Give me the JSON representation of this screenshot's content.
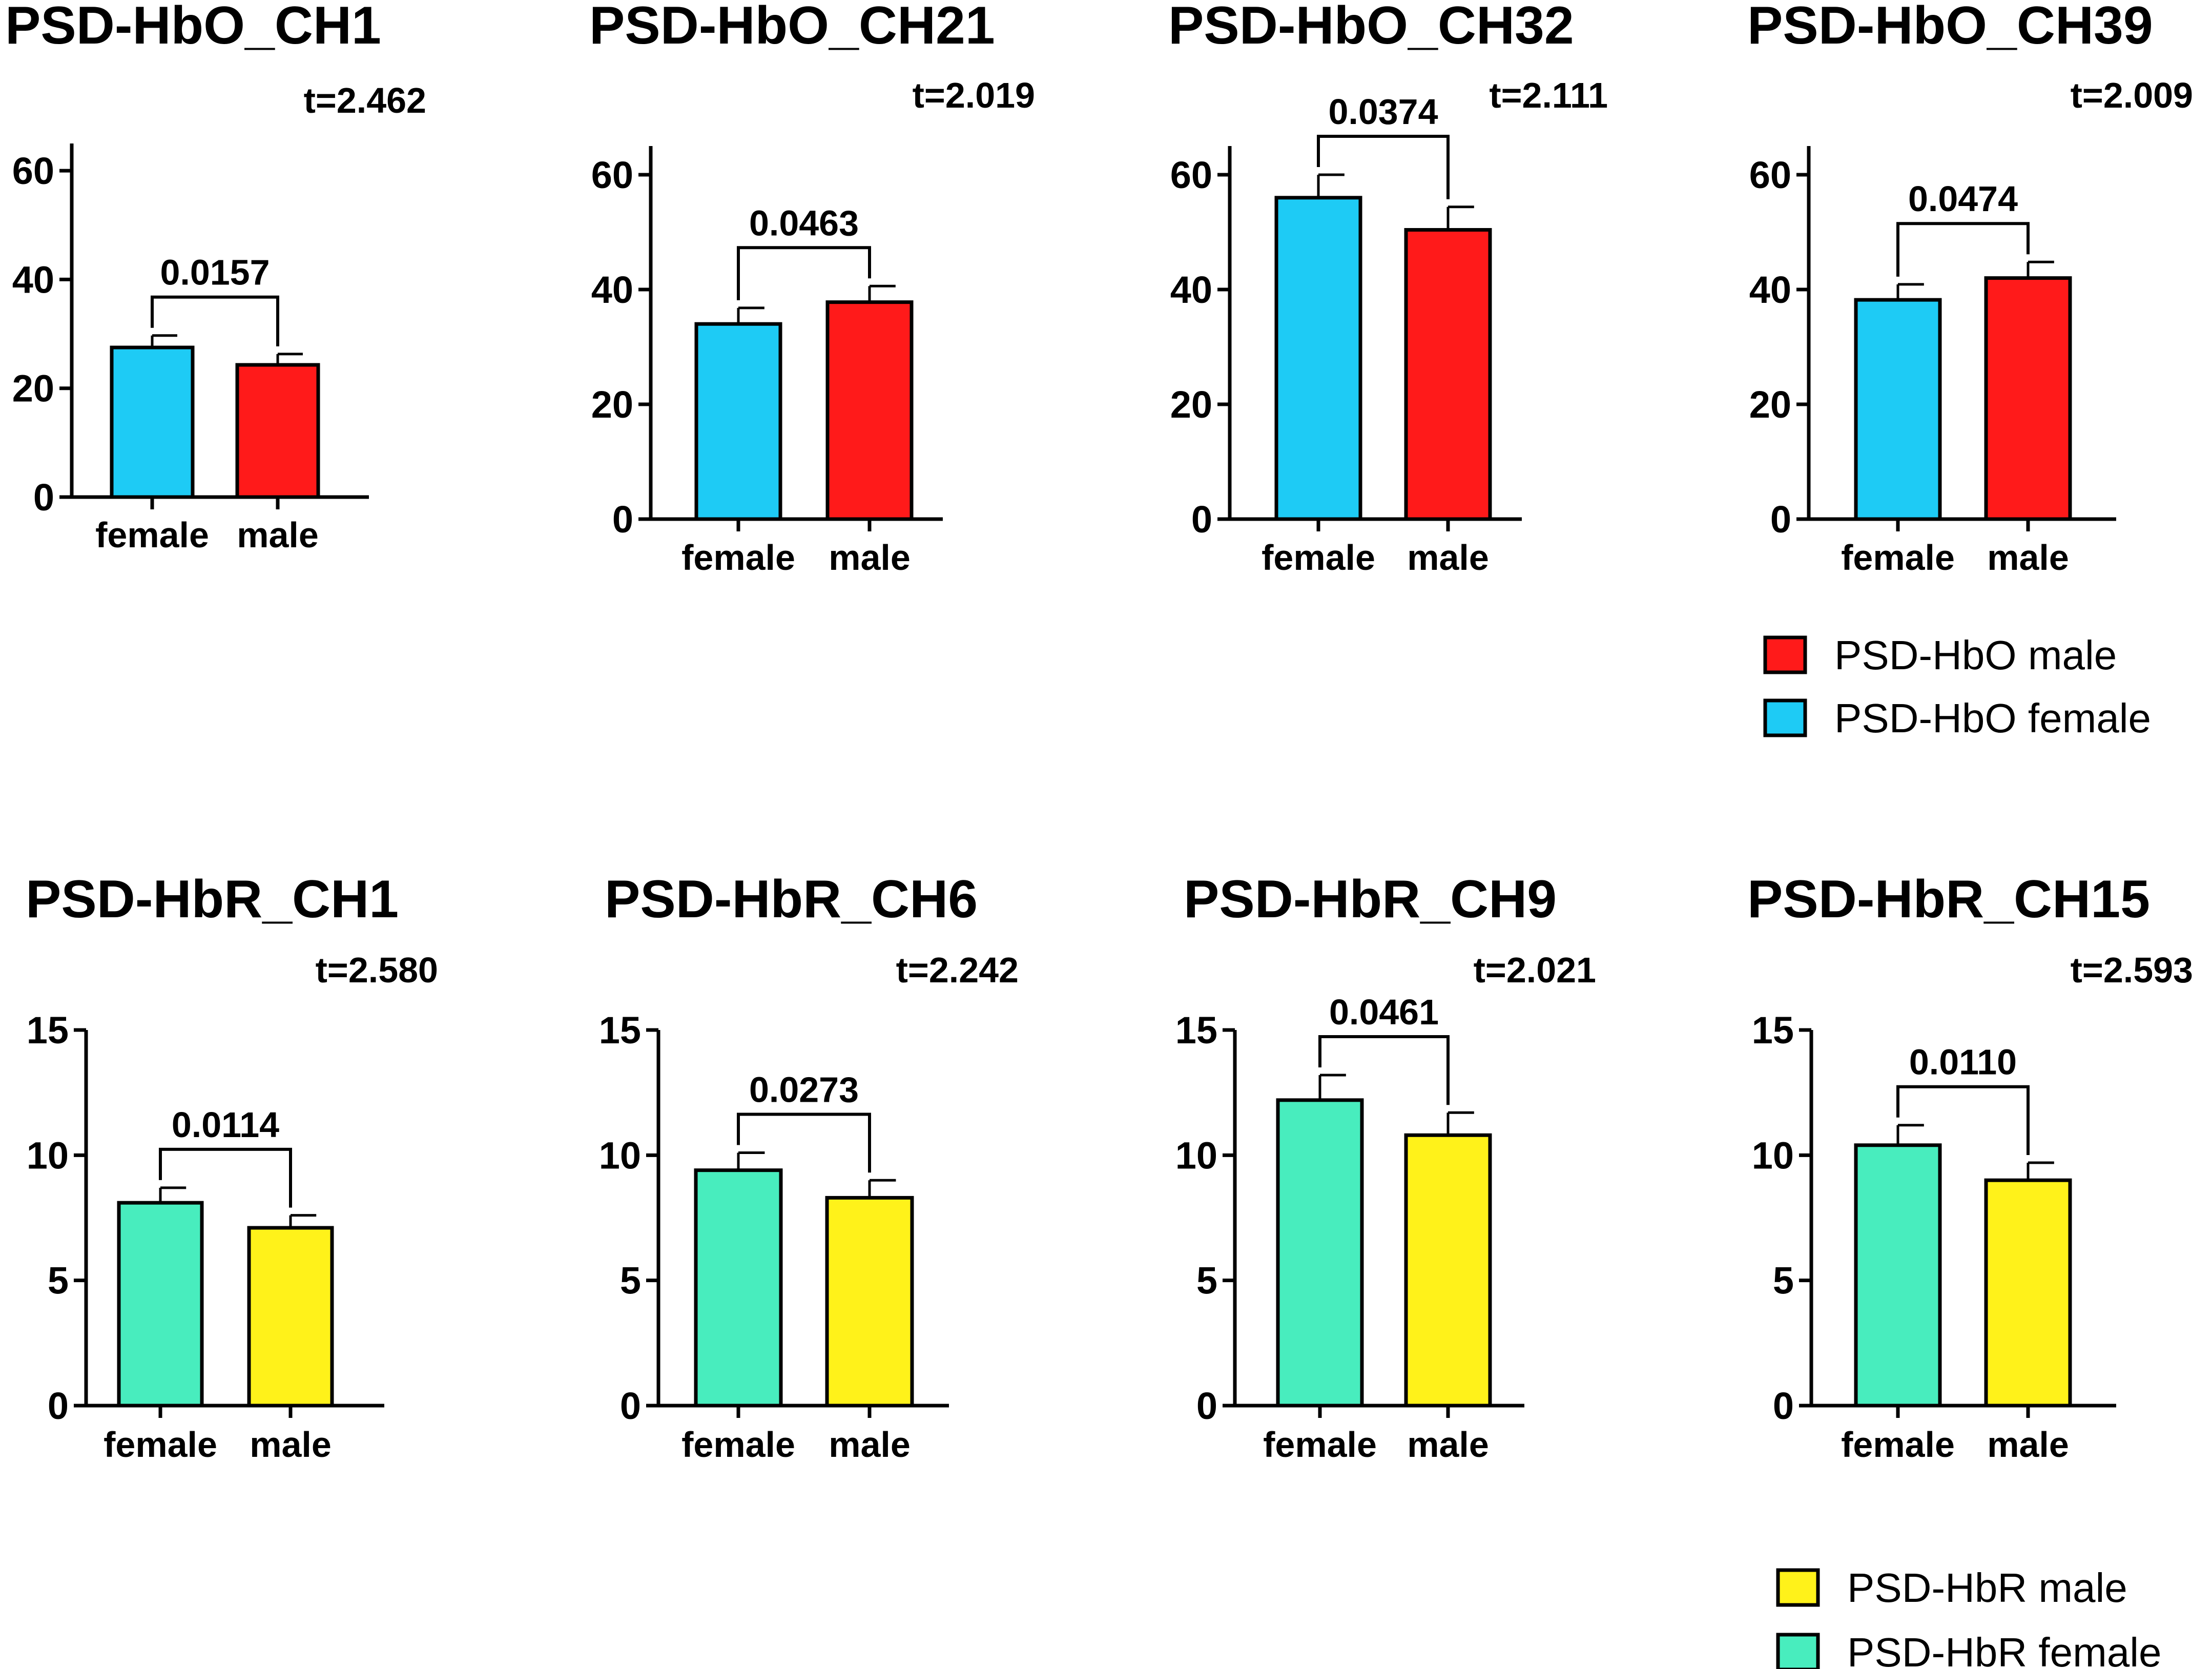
{
  "chart_data": [
    {
      "type": "bar",
      "title": "PSD-HbO_CH1",
      "t_stat": "t=2.462",
      "categories": [
        "female",
        "male"
      ],
      "values": [
        27.5,
        24.3
      ],
      "errors": [
        2.2,
        2.0
      ],
      "ylim": [
        0,
        65
      ],
      "yticks": [
        0,
        20,
        40,
        60
      ],
      "p_value": "0.0157",
      "colors": [
        "#1ECBF5",
        "#FF1A1A"
      ]
    },
    {
      "type": "bar",
      "title": "PSD-HbO_CH21",
      "t_stat": "t=2.019",
      "categories": [
        "female",
        "male"
      ],
      "values": [
        34.0,
        37.8
      ],
      "errors": [
        2.8,
        2.8
      ],
      "ylim": [
        0,
        65
      ],
      "yticks": [
        0,
        20,
        40,
        60
      ],
      "p_value": "0.0463",
      "colors": [
        "#1ECBF5",
        "#FF1A1A"
      ]
    },
    {
      "type": "bar",
      "title": "PSD-HbO_CH32",
      "t_stat": "t=2.111",
      "categories": [
        "female",
        "male"
      ],
      "values": [
        56.0,
        50.4
      ],
      "errors": [
        4.0,
        4.0
      ],
      "ylim": [
        0,
        65
      ],
      "yticks": [
        0,
        20,
        40,
        60
      ],
      "p_value": "0.0374",
      "colors": [
        "#1ECBF5",
        "#FF1A1A"
      ]
    },
    {
      "type": "bar",
      "title": "PSD-HbO_CH39",
      "t_stat": "t=2.009",
      "categories": [
        "female",
        "male"
      ],
      "values": [
        38.2,
        42.0
      ],
      "errors": [
        2.7,
        2.8
      ],
      "ylim": [
        0,
        65
      ],
      "yticks": [
        0,
        20,
        40,
        60
      ],
      "p_value": "0.0474",
      "colors": [
        "#1ECBF5",
        "#FF1A1A"
      ]
    },
    {
      "type": "bar",
      "title": "PSD-HbR_CH1",
      "t_stat": "t=2.580",
      "categories": [
        "female",
        "male"
      ],
      "values": [
        8.1,
        7.1
      ],
      "errors": [
        0.6,
        0.5
      ],
      "ylim": [
        0,
        15
      ],
      "yticks": [
        0,
        5,
        10,
        15
      ],
      "p_value": "0.0114",
      "colors": [
        "#48EDBE",
        "#FFF21A"
      ]
    },
    {
      "type": "bar",
      "title": "PSD-HbR_CH6",
      "t_stat": "t=2.242",
      "categories": [
        "female",
        "male"
      ],
      "values": [
        9.4,
        8.3
      ],
      "errors": [
        0.7,
        0.7
      ],
      "ylim": [
        0,
        15
      ],
      "yticks": [
        0,
        5,
        10,
        15
      ],
      "p_value": "0.0273",
      "colors": [
        "#48EDBE",
        "#FFF21A"
      ]
    },
    {
      "type": "bar",
      "title": "PSD-HbR_CH9",
      "t_stat": "t=2.021",
      "categories": [
        "female",
        "male"
      ],
      "values": [
        12.2,
        10.8
      ],
      "errors": [
        1.0,
        0.9
      ],
      "ylim": [
        0,
        15
      ],
      "yticks": [
        0,
        5,
        10,
        15
      ],
      "p_value": "0.0461",
      "colors": [
        "#48EDBE",
        "#FFF21A"
      ]
    },
    {
      "type": "bar",
      "title": "PSD-HbR_CH15",
      "t_stat": "t=2.593",
      "categories": [
        "female",
        "male"
      ],
      "values": [
        10.4,
        9.0
      ],
      "errors": [
        0.8,
        0.7
      ],
      "ylim": [
        0,
        15
      ],
      "yticks": [
        0,
        5,
        10,
        15
      ],
      "p_value": "0.0110",
      "colors": [
        "#48EDBE",
        "#FFF21A"
      ]
    }
  ],
  "legends": [
    {
      "entries": [
        {
          "label": "PSD-HbO male",
          "color": "#FF1A1A"
        },
        {
          "label": "PSD-HbO female",
          "color": "#1ECBF5"
        }
      ]
    },
    {
      "entries": [
        {
          "label": "PSD-HbR male",
          "color": "#FFF21A"
        },
        {
          "label": "PSD-HbR female",
          "color": "#48EDBE"
        }
      ]
    }
  ]
}
